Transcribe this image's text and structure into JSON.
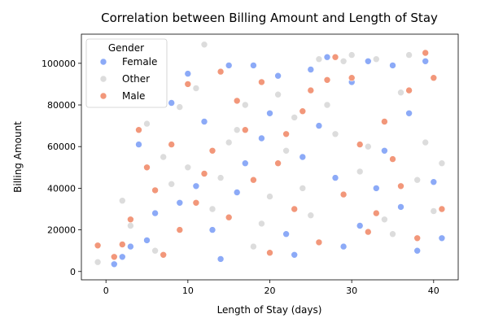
{
  "chart_data": {
    "type": "scatter",
    "title": "Correlation between Billing Amount and Length of Stay",
    "xlabel": "Length of Stay (days)",
    "ylabel": "Billing Amount",
    "xlim": [
      -3,
      43
    ],
    "ylim": [
      -4000,
      114000
    ],
    "xticks": [
      0,
      10,
      20,
      30,
      40
    ],
    "yticks": [
      0,
      20000,
      40000,
      60000,
      80000,
      100000
    ],
    "grid": false,
    "legend": {
      "title": "Gender",
      "placement": "top-left",
      "entries": [
        {
          "name": "Female",
          "color": "#8caaf7"
        },
        {
          "name": "Other",
          "color": "#dcdcdc"
        },
        {
          "name": "Male",
          "color": "#f2977a"
        }
      ]
    },
    "series": [
      {
        "name": "Female",
        "color": "#8caaf7",
        "points": [
          [
            1,
            3500
          ],
          [
            3,
            12000
          ],
          [
            4,
            61000
          ],
          [
            6,
            28000
          ],
          [
            8,
            81000
          ],
          [
            10,
            95000
          ],
          [
            11,
            41000
          ],
          [
            13,
            20000
          ],
          [
            15,
            99000
          ],
          [
            17,
            52000
          ],
          [
            18,
            99000
          ],
          [
            20,
            76000
          ],
          [
            21,
            94000
          ],
          [
            23,
            8000
          ],
          [
            25,
            97000
          ],
          [
            27,
            103000
          ],
          [
            28,
            45000
          ],
          [
            30,
            91000
          ],
          [
            31,
            22000
          ],
          [
            32,
            101000
          ],
          [
            34,
            58000
          ],
          [
            35,
            99000
          ],
          [
            36,
            31000
          ],
          [
            37,
            76000
          ],
          [
            38,
            10000
          ],
          [
            39,
            101000
          ],
          [
            40,
            43000
          ],
          [
            41,
            16000
          ],
          [
            5,
            15000
          ],
          [
            9,
            33000
          ],
          [
            12,
            72000
          ],
          [
            14,
            6000
          ],
          [
            16,
            38000
          ],
          [
            19,
            64000
          ],
          [
            22,
            18000
          ],
          [
            24,
            55000
          ],
          [
            26,
            70000
          ],
          [
            29,
            12000
          ],
          [
            33,
            40000
          ],
          [
            2,
            7000
          ]
        ]
      },
      {
        "name": "Other",
        "color": "#dcdcdc",
        "points": [
          [
            -1,
            4500
          ],
          [
            2,
            34000
          ],
          [
            3,
            22000
          ],
          [
            5,
            71000
          ],
          [
            7,
            55000
          ],
          [
            9,
            79000
          ],
          [
            11,
            88000
          ],
          [
            12,
            109000
          ],
          [
            14,
            45000
          ],
          [
            16,
            68000
          ],
          [
            17,
            80000
          ],
          [
            19,
            23000
          ],
          [
            21,
            85000
          ],
          [
            22,
            58000
          ],
          [
            24,
            40000
          ],
          [
            26,
            102000
          ],
          [
            28,
            66000
          ],
          [
            29,
            101000
          ],
          [
            30,
            104000
          ],
          [
            31,
            48000
          ],
          [
            33,
            102000
          ],
          [
            35,
            18000
          ],
          [
            36,
            86000
          ],
          [
            37,
            104000
          ],
          [
            39,
            62000
          ],
          [
            40,
            29000
          ],
          [
            41,
            52000
          ],
          [
            6,
            10000
          ],
          [
            10,
            50000
          ],
          [
            13,
            30000
          ],
          [
            15,
            62000
          ],
          [
            18,
            12000
          ],
          [
            20,
            36000
          ],
          [
            23,
            74000
          ],
          [
            25,
            27000
          ],
          [
            27,
            80000
          ],
          [
            32,
            60000
          ],
          [
            34,
            25000
          ],
          [
            38,
            44000
          ],
          [
            8,
            42000
          ]
        ]
      },
      {
        "name": "Male",
        "color": "#f2977a",
        "points": [
          [
            -1,
            12500
          ],
          [
            1,
            7000
          ],
          [
            3,
            25000
          ],
          [
            4,
            68000
          ],
          [
            6,
            39000
          ],
          [
            8,
            61000
          ],
          [
            9,
            20000
          ],
          [
            10,
            90000
          ],
          [
            12,
            47000
          ],
          [
            14,
            96000
          ],
          [
            15,
            26000
          ],
          [
            17,
            68000
          ],
          [
            19,
            91000
          ],
          [
            21,
            52000
          ],
          [
            23,
            30000
          ],
          [
            25,
            87000
          ],
          [
            26,
            14000
          ],
          [
            27,
            92000
          ],
          [
            28,
            103000
          ],
          [
            29,
            37000
          ],
          [
            30,
            93000
          ],
          [
            31,
            61000
          ],
          [
            33,
            28000
          ],
          [
            34,
            72000
          ],
          [
            36,
            41000
          ],
          [
            37,
            87000
          ],
          [
            38,
            16000
          ],
          [
            39,
            105000
          ],
          [
            40,
            93000
          ],
          [
            41,
            30000
          ],
          [
            5,
            50000
          ],
          [
            7,
            8000
          ],
          [
            11,
            33000
          ],
          [
            13,
            58000
          ],
          [
            16,
            82000
          ],
          [
            18,
            44000
          ],
          [
            20,
            9000
          ],
          [
            22,
            66000
          ],
          [
            24,
            77000
          ],
          [
            32,
            19000
          ],
          [
            35,
            54000
          ],
          [
            2,
            13000
          ]
        ]
      }
    ]
  }
}
